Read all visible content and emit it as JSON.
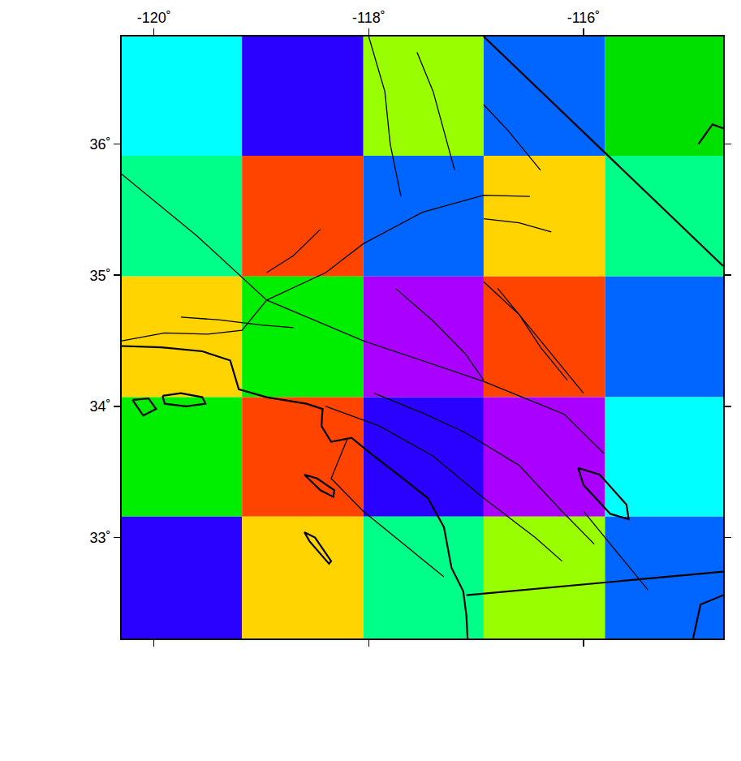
{
  "chart_data": {
    "type": "map",
    "xlim": [
      -120.3,
      -114.7
    ],
    "ylim": [
      32.23,
      36.82
    ],
    "xticks": [
      {
        "value": -120,
        "label": "-120˚"
      },
      {
        "value": -118,
        "label": "-118˚"
      },
      {
        "value": -116,
        "label": "-116˚"
      }
    ],
    "yticks": [
      {
        "value": 33,
        "label": "33˚"
      },
      {
        "value": 34,
        "label": "34˚"
      },
      {
        "value": 35,
        "label": "35˚"
      },
      {
        "value": 36,
        "label": "36˚"
      }
    ],
    "grid": false,
    "cells": {
      "x_edges": [
        -120.3,
        -119.18,
        -118.05,
        -116.93,
        -115.8,
        -114.7
      ],
      "y_edges": [
        36.82,
        35.91,
        34.99,
        34.07,
        33.16,
        32.23
      ],
      "colors": [
        [
          "#00ffff",
          "#2a00ff",
          "#99ff00",
          "#0066ff",
          "#00e000"
        ],
        [
          "#00ff88",
          "#ff4400",
          "#0066ff",
          "#ffd400",
          "#00ff88"
        ],
        [
          "#ffd400",
          "#00ee00",
          "#aa00ff",
          "#ff4400",
          "#0066ff"
        ],
        [
          "#00ee00",
          "#ff4400",
          "#2a00ff",
          "#aa00ff",
          "#00ffff"
        ],
        [
          "#2a00ff",
          "#ffd400",
          "#00ff88",
          "#99ff00",
          "#0066ff"
        ]
      ]
    },
    "coastline": [
      {
        "x": [
          -120.3,
          -119.93,
          -119.55,
          -119.29,
          -119.21,
          -118.95,
          -118.58,
          -118.43,
          -118.44,
          -118.35,
          -118.16,
          -117.98,
          -117.68,
          -117.45,
          -117.3,
          -117.23,
          -117.12,
          -117.09,
          -117.08
        ],
        "y": [
          34.46,
          34.45,
          34.42,
          34.35,
          34.13,
          34.07,
          34.02,
          33.98,
          33.85,
          33.73,
          33.76,
          33.64,
          33.45,
          33.3,
          33.08,
          32.77,
          32.59,
          32.4,
          32.23
        ]
      },
      {
        "x": [
          -119.92,
          -119.75,
          -119.55,
          -119.52,
          -119.7,
          -119.9,
          -119.92
        ],
        "y": [
          34.08,
          34.1,
          34.07,
          34.02,
          34.0,
          34.02,
          34.08
        ]
      },
      {
        "x": [
          -120.2,
          -120.05,
          -119.98,
          -120.1,
          -120.2
        ],
        "y": [
          34.05,
          34.06,
          33.98,
          33.93,
          34.05
        ]
      },
      {
        "x": [
          -118.6,
          -118.48,
          -118.32,
          -118.33,
          -118.45,
          -118.6
        ],
        "y": [
          33.48,
          33.45,
          33.36,
          33.31,
          33.36,
          33.48
        ]
      },
      {
        "x": [
          -118.6,
          -118.5,
          -118.35,
          -118.37,
          -118.55,
          -118.6
        ],
        "y": [
          33.04,
          33.0,
          32.82,
          32.8,
          32.97,
          33.04
        ]
      },
      {
        "x": [
          -116.05,
          -115.85,
          -115.6,
          -115.58,
          -115.75,
          -116.0,
          -116.05
        ],
        "y": [
          33.53,
          33.48,
          33.25,
          33.14,
          33.18,
          33.4,
          33.53
        ]
      },
      {
        "x": [
          -114.98,
          -114.91,
          -114.7
        ],
        "y": [
          32.23,
          32.49,
          32.56
        ]
      },
      {
        "x": [
          -114.93,
          -114.8,
          -114.7
        ],
        "y": [
          36.0,
          36.15,
          36.12
        ]
      }
    ],
    "borders": [
      {
        "x": [
          -117.09,
          -114.7
        ],
        "y": [
          32.56,
          32.74
        ]
      },
      {
        "x": [
          -116.93,
          -114.7
        ],
        "y": [
          36.82,
          35.07
        ]
      }
    ],
    "faults": [
      {
        "x": [
          -120.3,
          -119.6,
          -118.95,
          -118.05,
          -116.93,
          -116.18,
          -115.81
        ],
        "y": [
          35.77,
          35.3,
          34.81,
          34.5,
          34.19,
          33.94,
          33.64
        ]
      },
      {
        "x": [
          -118.95,
          -118.4,
          -118.05,
          -117.5,
          -116.93,
          -116.5
        ],
        "y": [
          34.81,
          35.02,
          35.24,
          35.48,
          35.61,
          35.6
        ]
      },
      {
        "x": [
          -120.3,
          -119.9,
          -119.5,
          -119.18,
          -118.95
        ],
        "y": [
          34.5,
          34.56,
          34.55,
          34.58,
          34.81
        ]
      },
      {
        "x": [
          -119.75,
          -119.4,
          -119.0,
          -118.7
        ],
        "y": [
          34.68,
          34.66,
          34.62,
          34.6
        ]
      },
      {
        "x": [
          -118.4,
          -117.9,
          -117.4,
          -116.93,
          -116.45,
          -116.2
        ],
        "y": [
          34.0,
          33.85,
          33.62,
          33.3,
          33.0,
          32.82
        ]
      },
      {
        "x": [
          -117.95,
          -117.5,
          -117.1,
          -116.6,
          -116.2,
          -115.9
        ],
        "y": [
          34.1,
          33.95,
          33.8,
          33.55,
          33.2,
          32.95
        ]
      },
      {
        "x": [
          -117.75,
          -117.4,
          -117.1,
          -116.93
        ],
        "y": [
          34.9,
          34.65,
          34.4,
          34.2
        ]
      },
      {
        "x": [
          -116.93,
          -116.6,
          -116.4,
          -116.15
        ],
        "y": [
          34.95,
          34.7,
          34.45,
          34.2
        ]
      },
      {
        "x": [
          -116.8,
          -116.5,
          -116.25,
          -116.0
        ],
        "y": [
          34.9,
          34.6,
          34.35,
          34.1
        ]
      },
      {
        "x": [
          -118.0,
          -117.85,
          -117.8,
          -117.7
        ],
        "y": [
          36.82,
          36.4,
          36.0,
          35.6
        ]
      },
      {
        "x": [
          -117.55,
          -117.4,
          -117.3,
          -117.2
        ],
        "y": [
          36.7,
          36.4,
          36.1,
          35.8
        ]
      },
      {
        "x": [
          -116.93,
          -116.7,
          -116.55,
          -116.4
        ],
        "y": [
          36.3,
          36.1,
          35.95,
          35.8
        ]
      },
      {
        "x": [
          -116.93,
          -116.6,
          -116.3
        ],
        "y": [
          35.43,
          35.4,
          35.33
        ]
      },
      {
        "x": [
          -118.2,
          -118.35,
          -118.05,
          -117.3
        ],
        "y": [
          33.75,
          33.45,
          33.2,
          32.7
        ]
      },
      {
        "x": [
          -118.95,
          -118.7,
          -118.45
        ],
        "y": [
          35.02,
          35.15,
          35.35
        ]
      },
      {
        "x": [
          -116.0,
          -115.7,
          -115.4
        ],
        "y": [
          33.2,
          32.9,
          32.6
        ]
      }
    ]
  }
}
